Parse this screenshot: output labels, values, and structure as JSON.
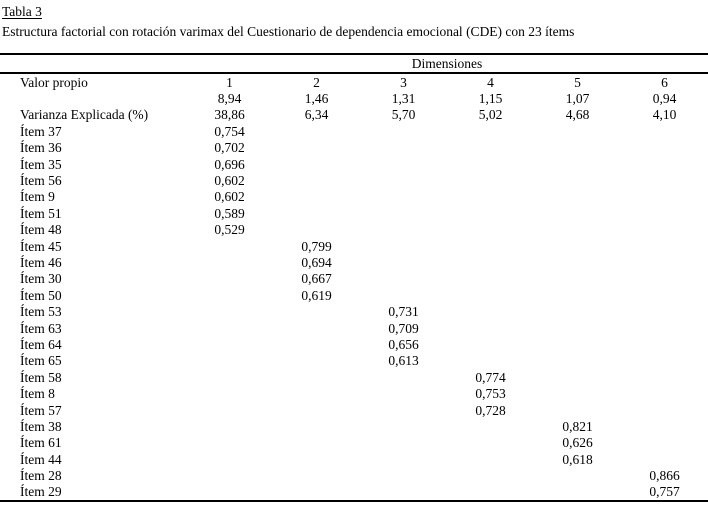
{
  "page": {
    "title": "Tabla 3",
    "subtitle": "Estructura factorial con rotación varimax del Cuestionario de dependencia emocional (CDE) con 23 ítems"
  },
  "chart_data": {
    "type": "table",
    "spanner": "Dimensiones",
    "dimension_columns": [
      "1",
      "2",
      "3",
      "4",
      "5",
      "6"
    ],
    "summary_rows": [
      {
        "label": "Valor propio",
        "values": [
          "1",
          "2",
          "3",
          "4",
          "5",
          "6"
        ]
      },
      {
        "label": "",
        "values": [
          "8,94",
          "1,46",
          "1,31",
          "1,15",
          "1,07",
          "0,94"
        ]
      },
      {
        "label": "Varianza Explicada (%)",
        "values": [
          "38,86",
          "6,34",
          "5,70",
          "5,02",
          "4,68",
          "4,10"
        ]
      }
    ],
    "items": [
      {
        "label": "Ítem 37",
        "dimension": 1,
        "loading": "0,754"
      },
      {
        "label": "Ítem 36",
        "dimension": 1,
        "loading": "0,702"
      },
      {
        "label": "Ítem 35",
        "dimension": 1,
        "loading": "0,696"
      },
      {
        "label": "Ítem 56",
        "dimension": 1,
        "loading": "0,602"
      },
      {
        "label": "Ítem 9",
        "dimension": 1,
        "loading": "0,602"
      },
      {
        "label": "Ítem 51",
        "dimension": 1,
        "loading": "0,589"
      },
      {
        "label": "Ítem 48",
        "dimension": 1,
        "loading": "0,529"
      },
      {
        "label": "Ítem 45",
        "dimension": 2,
        "loading": "0,799"
      },
      {
        "label": "Ítem 46",
        "dimension": 2,
        "loading": "0,694"
      },
      {
        "label": "Ítem 30",
        "dimension": 2,
        "loading": "0,667"
      },
      {
        "label": "Ítem 50",
        "dimension": 2,
        "loading": "0,619"
      },
      {
        "label": "Ítem 53",
        "dimension": 3,
        "loading": "0,731"
      },
      {
        "label": "Ítem 63",
        "dimension": 3,
        "loading": "0,709"
      },
      {
        "label": "Ítem 64",
        "dimension": 3,
        "loading": "0,656"
      },
      {
        "label": "Ítem 65",
        "dimension": 3,
        "loading": "0,613"
      },
      {
        "label": "Ítem 58",
        "dimension": 4,
        "loading": "0,774"
      },
      {
        "label": "Ítem 8",
        "dimension": 4,
        "loading": "0,753"
      },
      {
        "label": "Ítem 57",
        "dimension": 4,
        "loading": "0,728"
      },
      {
        "label": "Ítem 38",
        "dimension": 5,
        "loading": "0,821"
      },
      {
        "label": "Ítem 61",
        "dimension": 5,
        "loading": "0,626"
      },
      {
        "label": "Ítem 44",
        "dimension": 5,
        "loading": "0,618"
      },
      {
        "label": "Ítem 28",
        "dimension": 6,
        "loading": "0,866"
      },
      {
        "label": "Ítem 29",
        "dimension": 6,
        "loading": "0,757"
      }
    ],
    "text_color": "#000000",
    "background_color": "#ffffff"
  }
}
